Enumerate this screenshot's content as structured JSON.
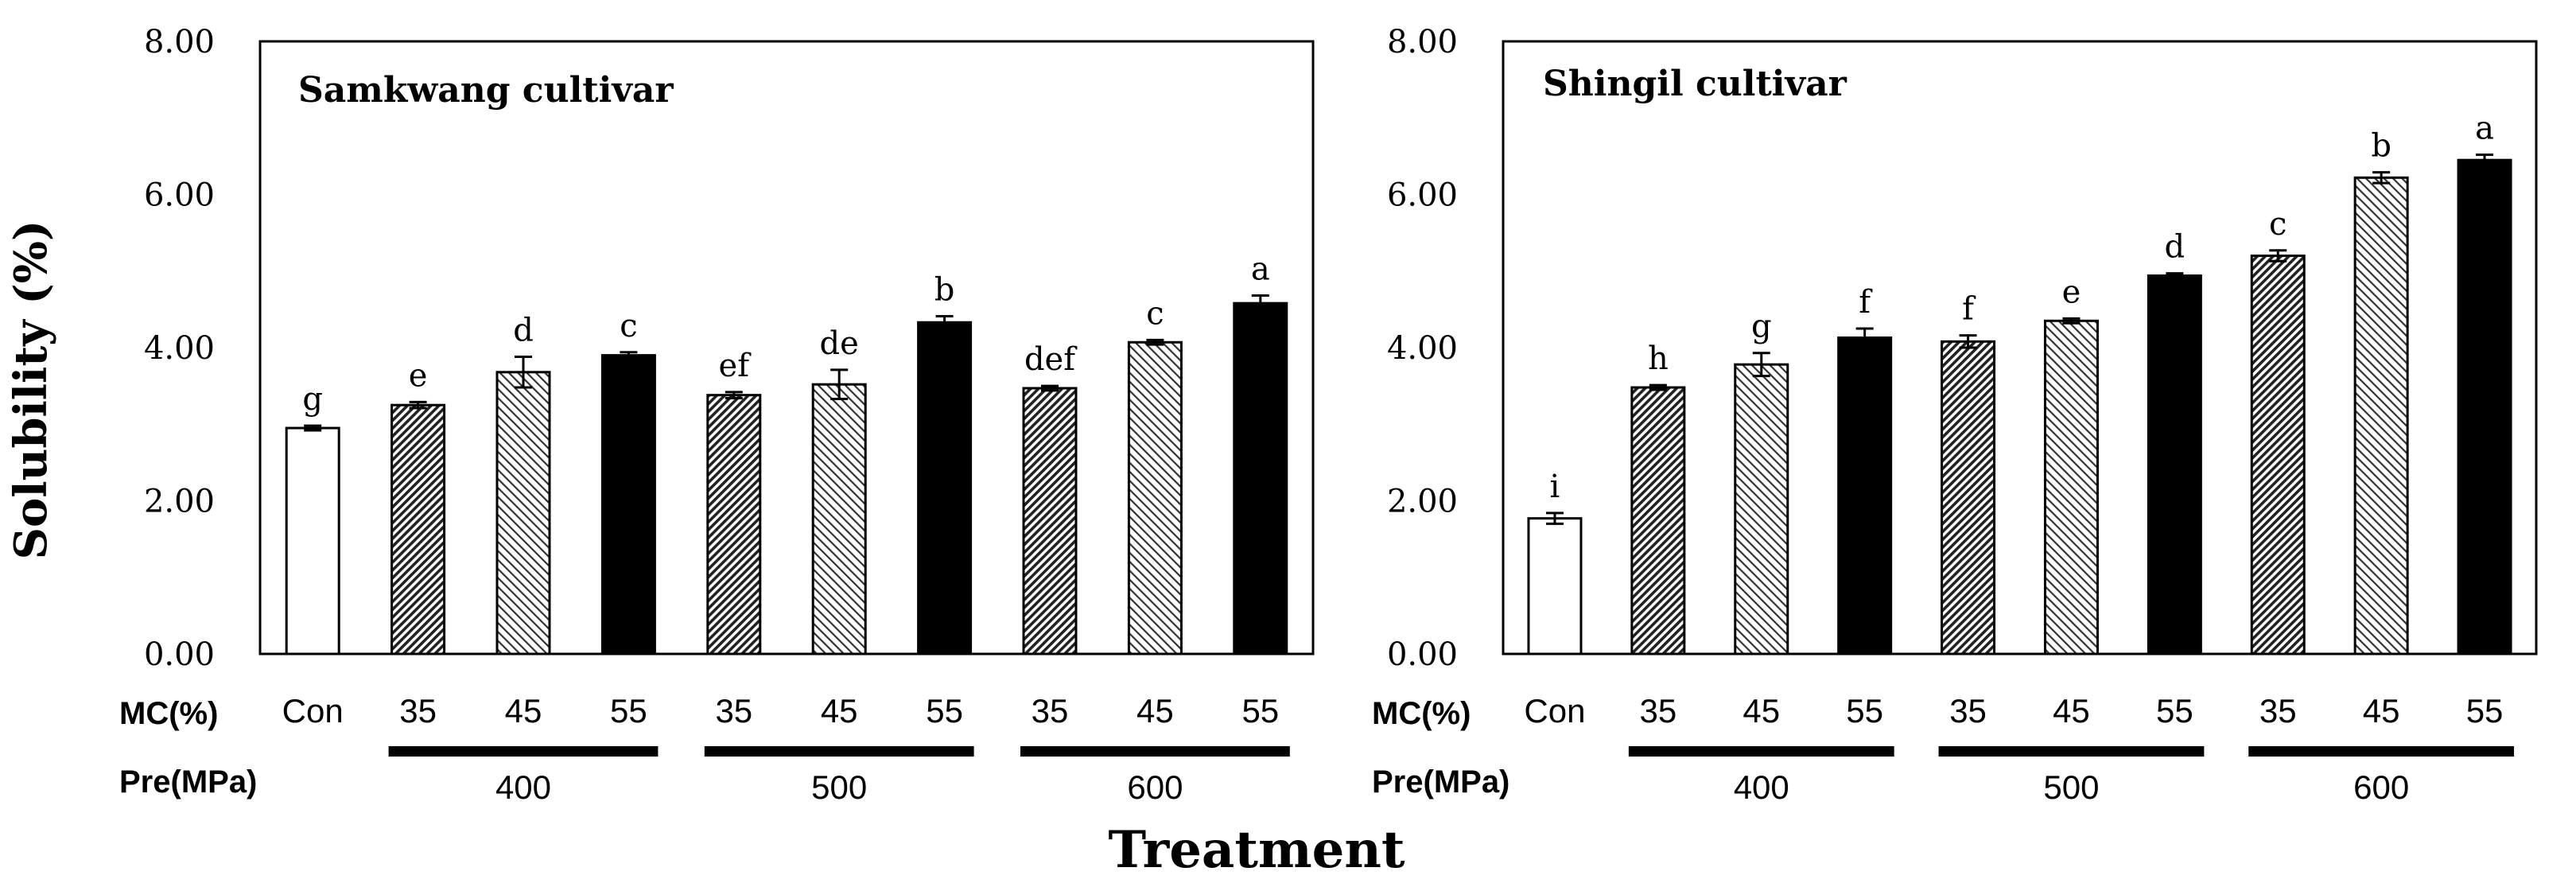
{
  "figure": {
    "y_axis_label": "Solubility (%)",
    "x_axis_label": "Treatment",
    "row_labels": {
      "mc": "MC(%)",
      "pre": "Pre(MPa)"
    },
    "pressure_groups": [
      "400",
      "500",
      "600"
    ]
  },
  "chart_data": [
    {
      "type": "bar",
      "title": "Samkwang cultivar",
      "ylabel": "Solubility (%)",
      "xlabel": "Treatment",
      "ylim": [
        0,
        8
      ],
      "yticks": [
        "0.00",
        "2.00",
        "4.00",
        "6.00",
        "8.00"
      ],
      "categories": [
        "Con",
        "35",
        "45",
        "55",
        "35",
        "45",
        "55",
        "35",
        "45",
        "55"
      ],
      "pressure": [
        "",
        "400",
        "400",
        "400",
        "500",
        "500",
        "500",
        "600",
        "600",
        "600"
      ],
      "values": [
        2.95,
        3.25,
        3.68,
        3.9,
        3.38,
        3.52,
        4.33,
        3.47,
        4.07,
        4.58
      ],
      "errors": [
        0.03,
        0.04,
        0.2,
        0.04,
        0.04,
        0.19,
        0.08,
        0.03,
        0.03,
        0.1
      ],
      "letters": [
        "g",
        "e",
        "d",
        "c",
        "ef",
        "de",
        "b",
        "def",
        "c",
        "a"
      ],
      "patterns": [
        "white",
        "dense",
        "light",
        "solid",
        "dense",
        "light",
        "solid",
        "dense",
        "light",
        "solid"
      ]
    },
    {
      "type": "bar",
      "title": "Shingil cultivar",
      "ylabel": "Solubility (%)",
      "xlabel": "Treatment",
      "ylim": [
        0,
        8
      ],
      "yticks": [
        "0.00",
        "2.00",
        "4.00",
        "6.00",
        "8.00"
      ],
      "categories": [
        "Con",
        "35",
        "45",
        "55",
        "35",
        "45",
        "55",
        "35",
        "45",
        "55"
      ],
      "pressure": [
        "",
        "400",
        "400",
        "400",
        "500",
        "500",
        "500",
        "600",
        "600",
        "600"
      ],
      "values": [
        1.77,
        3.48,
        3.78,
        4.13,
        4.08,
        4.35,
        4.94,
        5.2,
        6.22,
        6.45
      ],
      "errors": [
        0.07,
        0.03,
        0.15,
        0.12,
        0.08,
        0.03,
        0.03,
        0.07,
        0.07,
        0.07
      ],
      "letters": [
        "i",
        "h",
        "g",
        "f",
        "f",
        "e",
        "d",
        "c",
        "b",
        "a"
      ],
      "patterns": [
        "white",
        "dense",
        "light",
        "solid",
        "dense",
        "light",
        "solid",
        "dense",
        "light",
        "solid"
      ]
    }
  ]
}
